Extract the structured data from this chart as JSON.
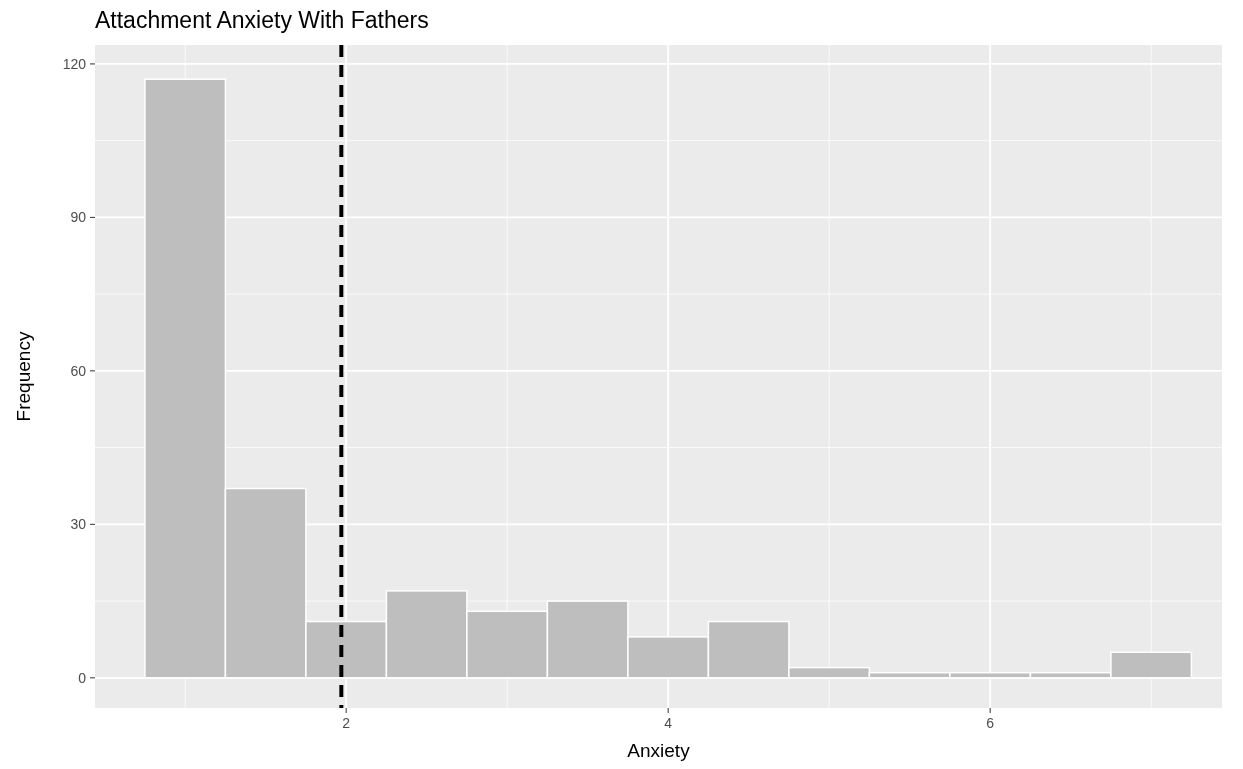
{
  "chart_data": {
    "type": "histogram",
    "title": "Attachment Anxiety With Fathers",
    "xlabel": "Anxiety",
    "ylabel": "Frequency",
    "bins": [
      0.75,
      1.25,
      1.75,
      2.25,
      2.75,
      3.25,
      3.75,
      4.25,
      4.75,
      5.25,
      5.75,
      6.25,
      6.75,
      7.25
    ],
    "values": [
      117,
      37,
      11,
      17,
      13,
      15,
      8,
      11,
      2,
      1,
      1,
      1,
      5
    ],
    "color": "#bebebe",
    "xlim": [
      0.44,
      7.44
    ],
    "xticks": [
      2,
      4,
      6
    ],
    "ylim": [
      -5.9,
      123.7
    ],
    "yticks": [
      0,
      30,
      60,
      90,
      120
    ],
    "grid": true,
    "ref_lines": [
      {
        "axis": "x",
        "value": 1.97,
        "color": "#000000",
        "line_style": "dashed"
      }
    ]
  }
}
